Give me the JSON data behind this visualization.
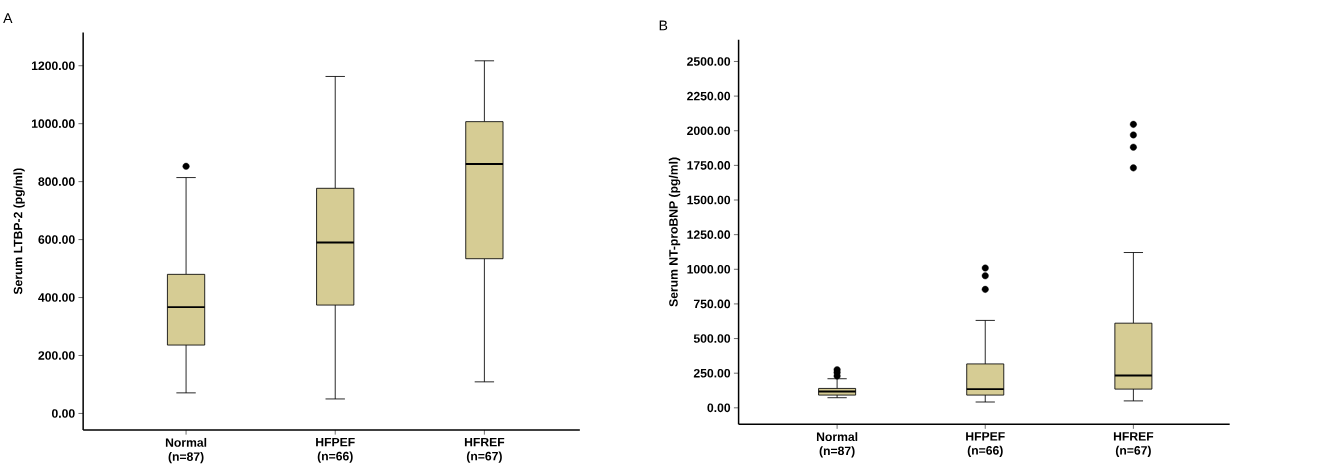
{
  "chart_data": [
    {
      "type": "box",
      "title": "A",
      "ylabel": "Serum LTBP-2 (pg/ml)",
      "categories": [
        "Normal (n=87)",
        "HFPEF (n=66)",
        "HFREF (n=67)"
      ],
      "color": "#d6cc94",
      "marker": "circle",
      "boxes": [
        {
          "low": 71,
          "q1": 236,
          "median": 367,
          "q3": 480,
          "high": 814,
          "outliers": [
            853
          ]
        },
        {
          "low": 50,
          "q1": 374,
          "median": 590,
          "q3": 777,
          "high": 1163
        },
        {
          "low": 109,
          "q1": 534,
          "median": 861,
          "q3": 1007,
          "high": 1217
        }
      ],
      "ylim": [
        -57,
        1315
      ],
      "yticks": [
        {
          "value": 0,
          "label": "0.00"
        },
        {
          "value": 200,
          "label": "200.00"
        },
        {
          "value": 400,
          "label": "400.00"
        },
        {
          "value": 600,
          "label": "600.00"
        },
        {
          "value": 800,
          "label": "800.00"
        },
        {
          "value": 1000,
          "label": "1000.00"
        },
        {
          "value": 1200,
          "label": "1200.00"
        }
      ]
    },
    {
      "type": "box",
      "title": "B",
      "ylabel": "Serum NT-proBNP (pg/ml)",
      "categories": [
        "Normal (n=87)",
        "HFPEF (n=66)",
        "HFREF (n=67)"
      ],
      "color": "#d6cc94",
      "marker": "circle",
      "boxes": [
        {
          "low": 73,
          "q1": 92,
          "median": 118,
          "q3": 140,
          "high": 210,
          "outliers": [
            230,
            255,
            275
          ]
        },
        {
          "low": 42,
          "q1": 92,
          "median": 135,
          "q3": 317,
          "high": 631,
          "outliers": [
            855,
            953,
            1009
          ]
        },
        {
          "low": 50,
          "q1": 135,
          "median": 233,
          "q3": 611,
          "high": 1121,
          "outliers": [
            1732,
            1881,
            1970,
            2046
          ]
        }
      ],
      "ylim": [
        -118,
        2657
      ],
      "yticks": [
        {
          "value": 0,
          "label": "0.00"
        },
        {
          "value": 250,
          "label": "250.00"
        },
        {
          "value": 500,
          "label": "500.00"
        },
        {
          "value": 750,
          "label": "750.00"
        },
        {
          "value": 1000,
          "label": "1000.00"
        },
        {
          "value": 1250,
          "label": "1250.00"
        },
        {
          "value": 1500,
          "label": "1500.00"
        },
        {
          "value": 1750,
          "label": "1750.00"
        },
        {
          "value": 2000,
          "label": "2000.00"
        },
        {
          "value": 2250,
          "label": "2250.00"
        },
        {
          "value": 2500,
          "label": "2500.00"
        }
      ]
    }
  ]
}
